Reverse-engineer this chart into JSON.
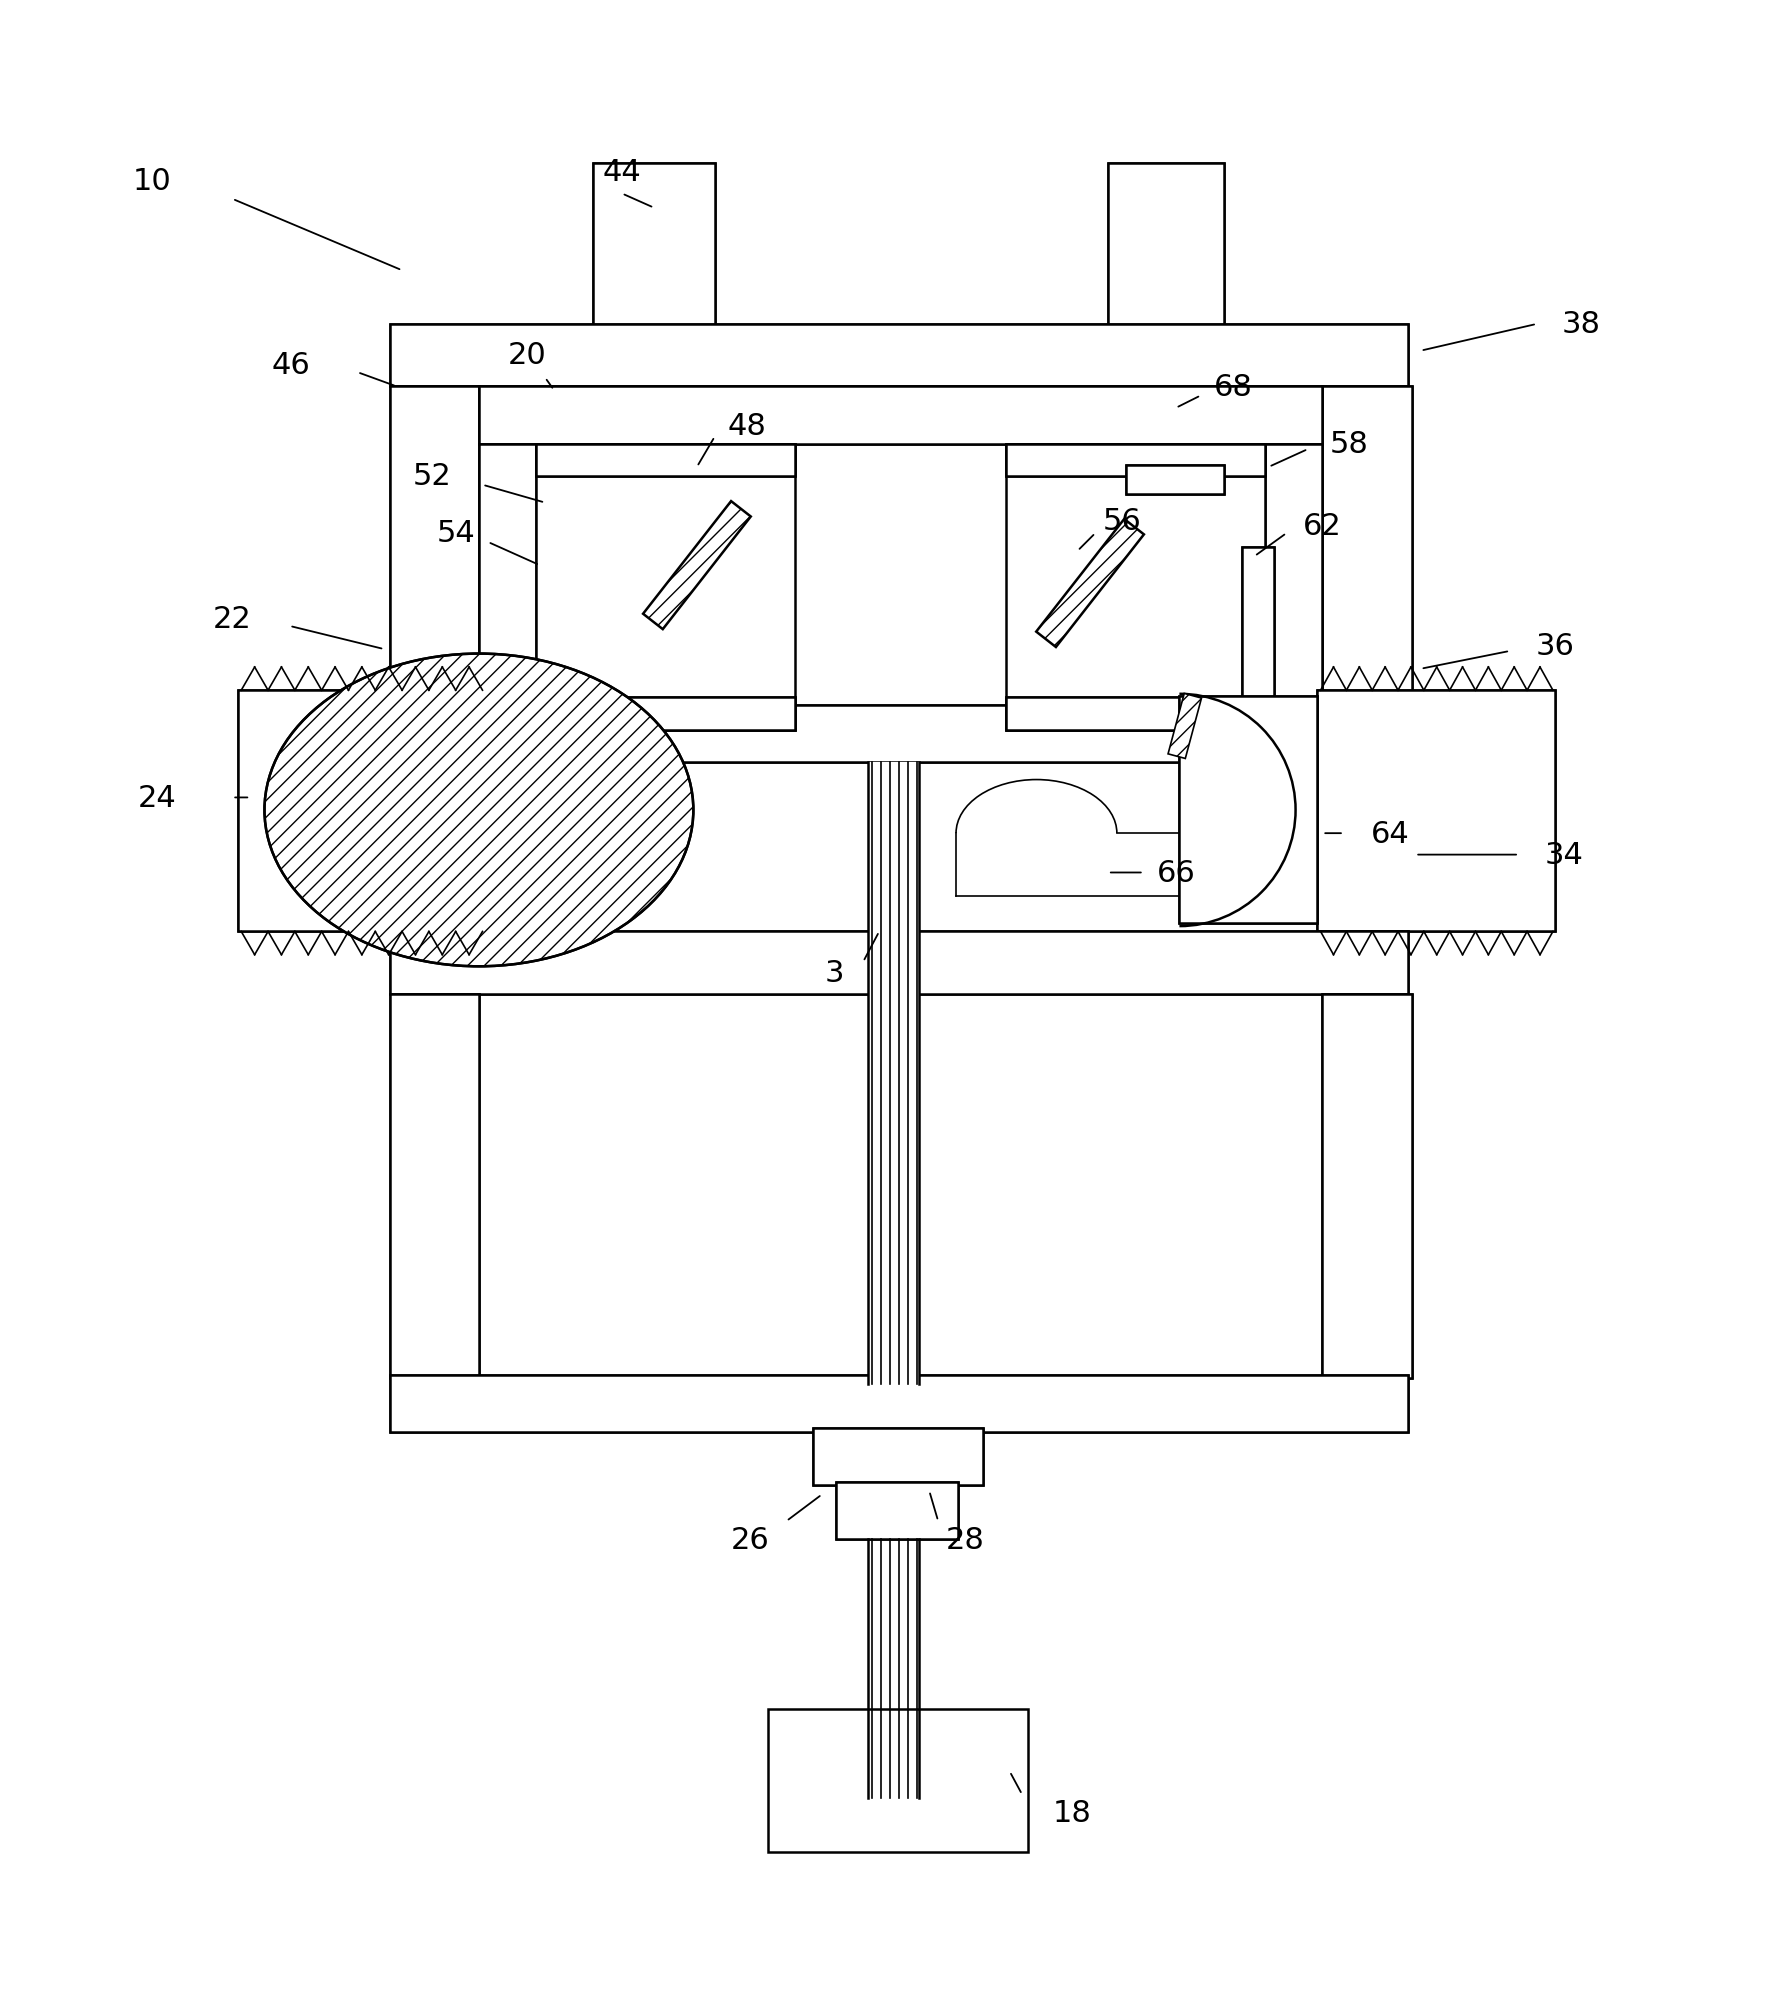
{
  "bg_color": "#ffffff",
  "line_color": "#000000",
  "fig_width": 17.87,
  "fig_height": 19.9,
  "dpi": 100
}
